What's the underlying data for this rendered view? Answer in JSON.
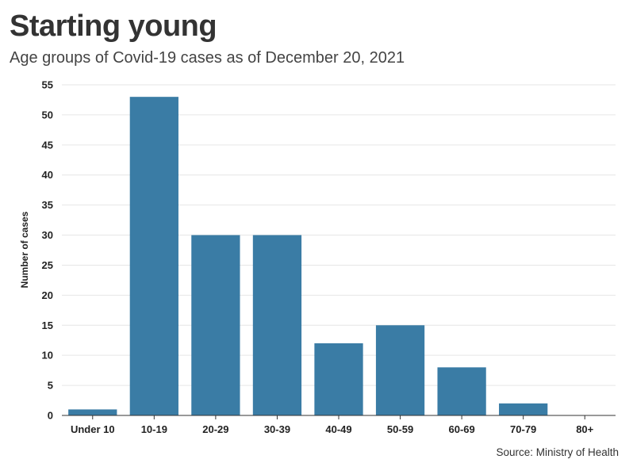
{
  "chart_data": {
    "type": "bar",
    "title": "Starting young",
    "subtitle": "Age groups of Covid-19 cases as of December 20, 2021",
    "ylabel": "Number of cases",
    "xlabel": "",
    "source": "Source: Ministry of Health",
    "categories": [
      "Under 10",
      "10-19",
      "20-29",
      "30-39",
      "40-49",
      "50-59",
      "60-69",
      "70-79",
      "80+"
    ],
    "values": [
      1,
      53,
      30,
      30,
      12,
      15,
      8,
      2,
      0
    ],
    "ylim": [
      0,
      55
    ],
    "yticks": [
      0,
      5,
      10,
      15,
      20,
      25,
      30,
      35,
      40,
      45,
      50,
      55
    ],
    "grid": true,
    "bar_color": "#3a7ca5"
  }
}
